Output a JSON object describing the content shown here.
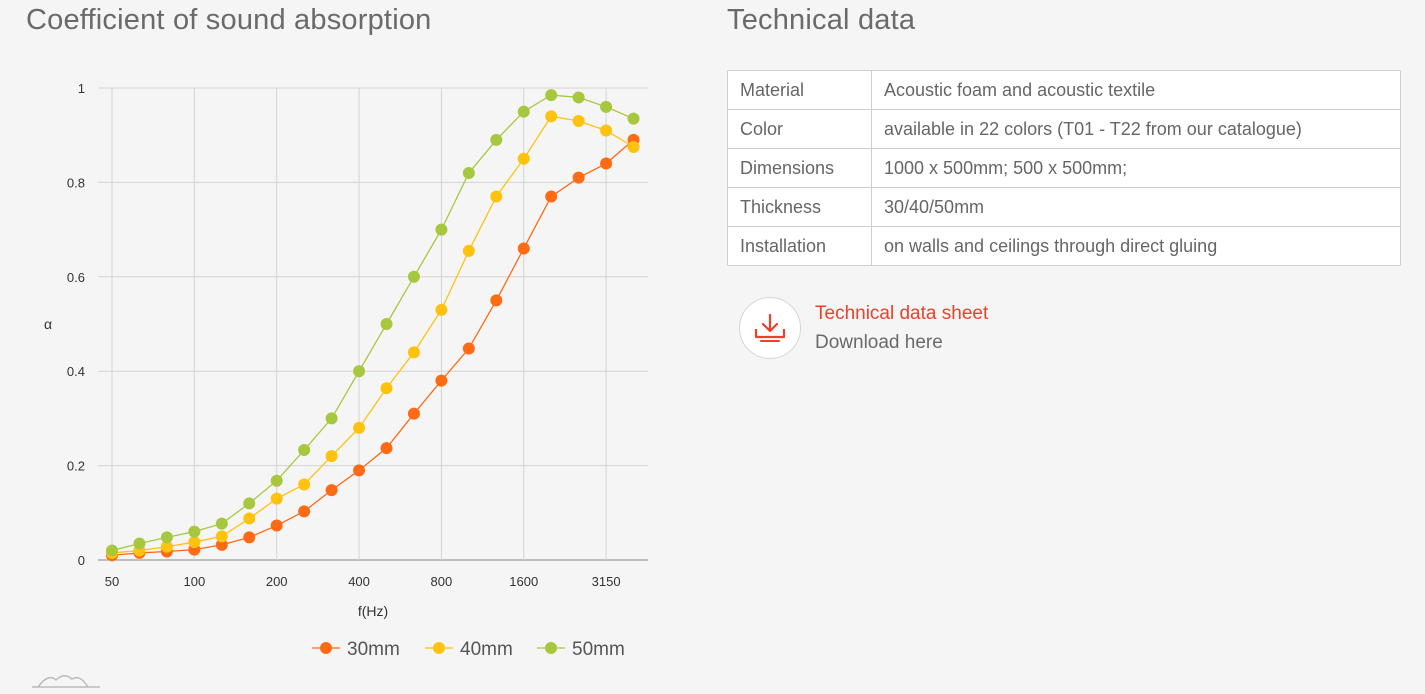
{
  "left": {
    "title": "Coefficient of sound absorption"
  },
  "right": {
    "title": "Technical data",
    "rows": [
      {
        "key": "Material",
        "value": "Acoustic foam and acoustic textile"
      },
      {
        "key": "Color",
        "value": "available in 22 colors (T01 - T22 from our catalogue)"
      },
      {
        "key": "Dimensions",
        "value": "1000 x 500mm; 500 x 500mm;"
      },
      {
        "key": "Thickness",
        "value": "30/40/50mm"
      },
      {
        "key": "Installation",
        "value": "on walls and ceilings through direct gluing"
      }
    ],
    "download": {
      "title": "Technical data sheet",
      "subtitle": "Download here",
      "icon": "download-icon"
    }
  },
  "logo_icon": "brand-mountain-icon",
  "chart_data": {
    "type": "line",
    "xlabel": "f(Hz)",
    "ylabel": "α",
    "ylim": [
      0,
      1
    ],
    "yticks": [
      "0",
      "0.2",
      "0.4",
      "0.6",
      "0.8",
      "1"
    ],
    "x": [
      50,
      63,
      80,
      100,
      125,
      160,
      200,
      250,
      315,
      400,
      500,
      630,
      800,
      1000,
      1250,
      1600,
      2000,
      2500,
      3150,
      4000
    ],
    "xticks": [
      "50",
      "100",
      "200",
      "400",
      "800",
      "1600",
      "3150"
    ],
    "x_scale": "log (one-third-octave bands)",
    "grid": true,
    "legend_position": "bottom-right",
    "series": [
      {
        "name": "30mm",
        "color": "#ff6a14",
        "values": [
          0.01,
          0.015,
          0.018,
          0.022,
          0.032,
          0.048,
          0.073,
          0.103,
          0.148,
          0.19,
          0.237,
          0.31,
          0.38,
          0.448,
          0.55,
          0.66,
          0.77,
          0.81,
          0.84,
          0.89
        ]
      },
      {
        "name": "40mm",
        "color": "#ffc20e",
        "values": [
          0.015,
          0.02,
          0.028,
          0.038,
          0.05,
          0.088,
          0.13,
          0.16,
          0.22,
          0.28,
          0.364,
          0.44,
          0.53,
          0.655,
          0.77,
          0.85,
          0.94,
          0.93,
          0.91,
          0.875
        ]
      },
      {
        "name": "50mm",
        "color": "#a7c83e",
        "values": [
          0.02,
          0.035,
          0.048,
          0.06,
          0.077,
          0.12,
          0.168,
          0.233,
          0.3,
          0.4,
          0.5,
          0.6,
          0.7,
          0.82,
          0.89,
          0.95,
          0.985,
          0.98,
          0.96,
          0.935
        ]
      }
    ]
  }
}
